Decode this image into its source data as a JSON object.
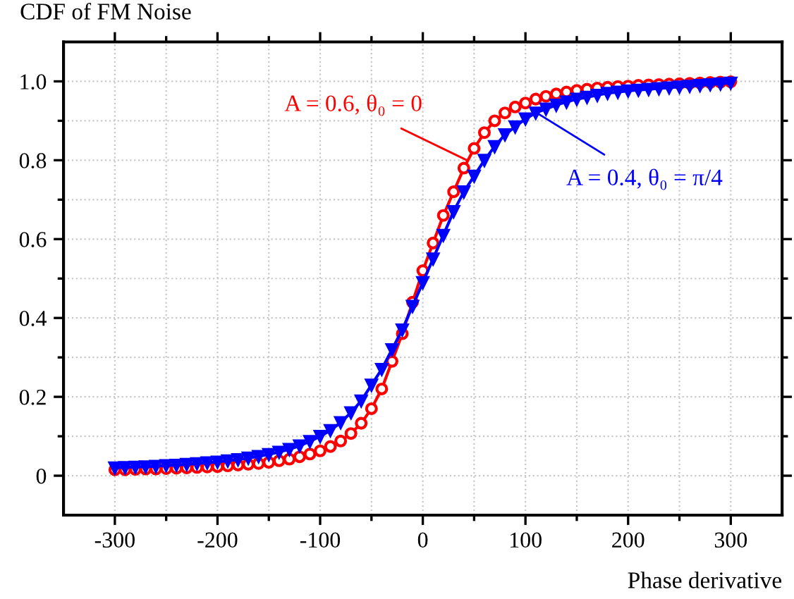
{
  "chart_data": {
    "type": "line",
    "title": "CDF of FM Noise",
    "xlabel": "Phase derivative",
    "x": [
      -300,
      -290,
      -280,
      -270,
      -260,
      -250,
      -240,
      -230,
      -220,
      -210,
      -200,
      -190,
      -180,
      -170,
      -160,
      -150,
      -140,
      -130,
      -120,
      -110,
      -100,
      -90,
      -80,
      -70,
      -60,
      -50,
      -40,
      -30,
      -20,
      -10,
      0,
      10,
      20,
      30,
      40,
      50,
      60,
      70,
      80,
      90,
      100,
      110,
      120,
      130,
      140,
      150,
      160,
      170,
      180,
      190,
      200,
      210,
      220,
      230,
      240,
      250,
      260,
      270,
      280,
      290,
      300
    ],
    "series": [
      {
        "color": "#ff0000",
        "marker": "circle",
        "values": [
          0.015,
          0.015,
          0.016,
          0.017,
          0.017,
          0.018,
          0.019,
          0.02,
          0.021,
          0.022,
          0.023,
          0.025,
          0.027,
          0.029,
          0.031,
          0.034,
          0.038,
          0.042,
          0.048,
          0.055,
          0.063,
          0.074,
          0.088,
          0.107,
          0.133,
          0.17,
          0.22,
          0.29,
          0.36,
          0.44,
          0.52,
          0.59,
          0.66,
          0.72,
          0.78,
          0.83,
          0.87,
          0.9,
          0.92,
          0.935,
          0.945,
          0.955,
          0.962,
          0.968,
          0.973,
          0.977,
          0.98,
          0.983,
          0.985,
          0.987,
          0.988,
          0.99,
          0.991,
          0.992,
          0.993,
          0.994,
          0.995,
          0.996,
          0.997,
          0.998,
          0.999
        ]
      },
      {
        "color": "#0000ff",
        "marker": "triangle",
        "values": [
          0.02,
          0.021,
          0.022,
          0.023,
          0.024,
          0.026,
          0.027,
          0.029,
          0.031,
          0.033,
          0.035,
          0.038,
          0.041,
          0.045,
          0.049,
          0.054,
          0.06,
          0.067,
          0.076,
          0.087,
          0.1,
          0.115,
          0.135,
          0.16,
          0.19,
          0.23,
          0.27,
          0.32,
          0.37,
          0.43,
          0.49,
          0.55,
          0.61,
          0.67,
          0.72,
          0.76,
          0.8,
          0.835,
          0.865,
          0.885,
          0.905,
          0.92,
          0.93,
          0.94,
          0.948,
          0.955,
          0.96,
          0.965,
          0.97,
          0.973,
          0.976,
          0.978,
          0.98,
          0.982,
          0.984,
          0.986,
          0.988,
          0.99,
          0.992,
          0.994,
          0.996
        ]
      }
    ],
    "annotations": [
      {
        "text": "A = 0.6, θ₀ = 0",
        "x": 43,
        "y": 0.8
      },
      {
        "text": "A = 0.4, θ₀ = π/4",
        "x": 111,
        "y": 0.92
      }
    ],
    "xlim": [
      -350,
      350
    ],
    "xticks": [
      -300,
      -200,
      -100,
      0,
      100,
      200,
      300
    ],
    "ylim": [
      -0.1,
      1.1
    ],
    "yticks": [
      0,
      0.2,
      0.4,
      0.6,
      0.8,
      {
        "value": 1.0,
        "label": "1.0"
      }
    ],
    "grid": true,
    "line_style": "solid"
  }
}
